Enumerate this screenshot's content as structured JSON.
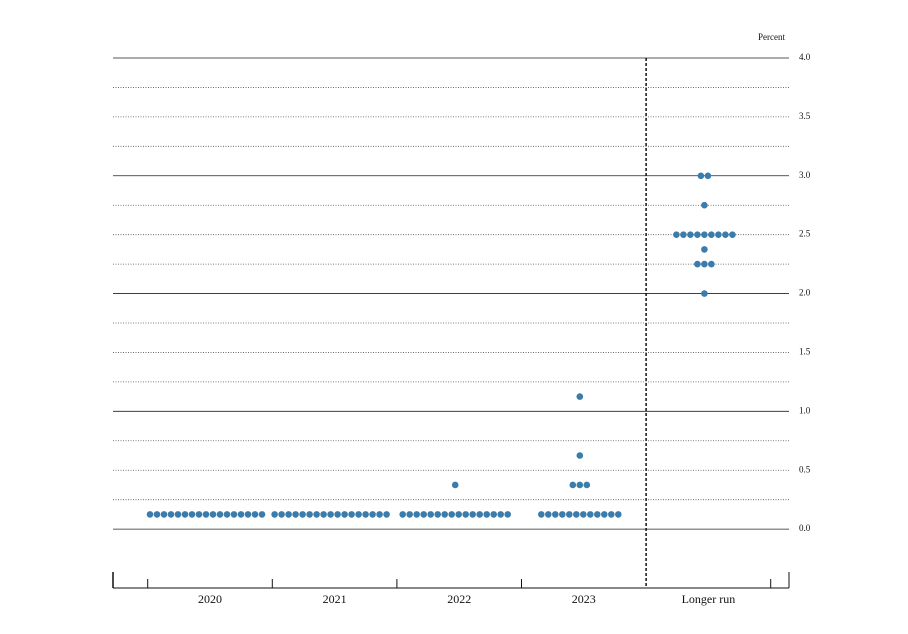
{
  "chart_data": {
    "type": "dotplot",
    "unit_label": "Percent",
    "categories": [
      "2020",
      "2021",
      "2022",
      "2023",
      "Longer run"
    ],
    "dots": [
      [
        {
          "value": 0.125,
          "count": 17
        }
      ],
      [
        {
          "value": 0.125,
          "count": 17
        }
      ],
      [
        {
          "value": 0.125,
          "count": 16
        },
        {
          "value": 0.375,
          "count": 1
        }
      ],
      [
        {
          "value": 0.125,
          "count": 12
        },
        {
          "value": 0.375,
          "count": 3
        },
        {
          "value": 0.625,
          "count": 1
        },
        {
          "value": 1.125,
          "count": 1
        }
      ],
      [
        {
          "value": 2.0,
          "count": 1
        },
        {
          "value": 2.25,
          "count": 3
        },
        {
          "value": 2.375,
          "count": 1
        },
        {
          "value": 2.5,
          "count": 9
        },
        {
          "value": 2.75,
          "count": 1
        },
        {
          "value": 3.0,
          "count": 2
        }
      ]
    ],
    "color": "#3b7cac",
    "ylim": [
      -0.5,
      4.0
    ],
    "yticks": [
      {
        "value": 0,
        "label": "0.0"
      },
      0.5,
      {
        "value": 1,
        "label": "1.0"
      },
      1.5,
      {
        "value": 2,
        "label": "2.0"
      },
      2.5,
      {
        "value": 3,
        "label": "3.0"
      },
      3.5,
      {
        "value": 4,
        "label": "4.0"
      }
    ],
    "minor_gridlines": [
      0.25,
      0.75,
      1.25,
      1.75,
      2.25,
      2.75,
      3.25,
      3.75
    ],
    "divider_before": "Longer run"
  }
}
